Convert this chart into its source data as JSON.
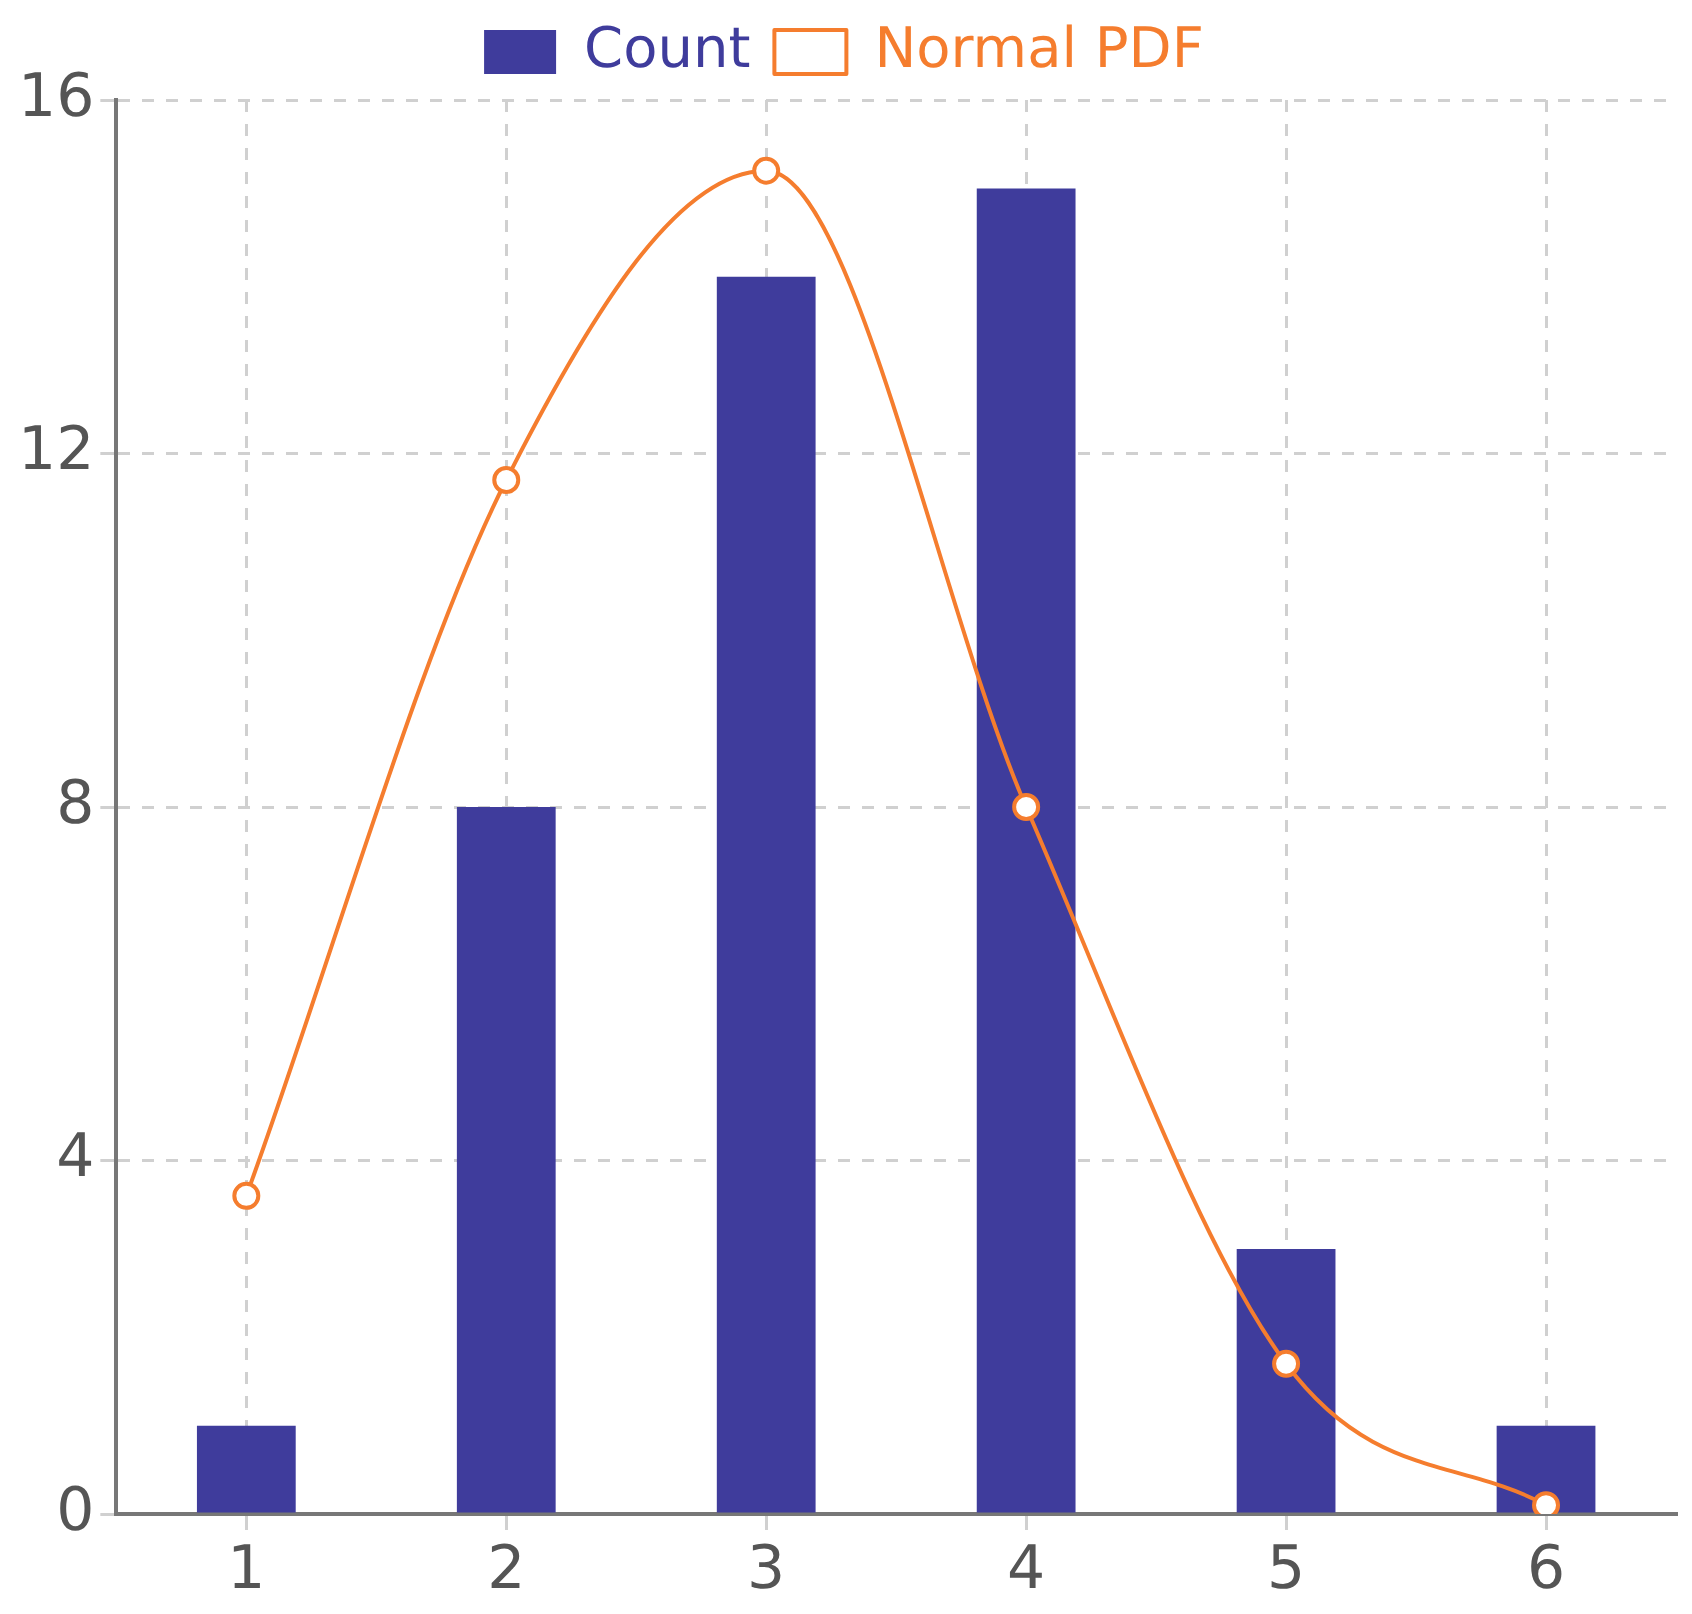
{
  "chart_data": {
    "type": "bar",
    "categories": [
      "1",
      "2",
      "3",
      "4",
      "5",
      "6"
    ],
    "series": [
      {
        "name": "Count",
        "color": "#3f3c9c",
        "values": [
          1,
          8,
          14,
          15,
          3,
          1
        ]
      },
      {
        "name": "Normal PDF",
        "type": "line",
        "color": "#f57d2e",
        "values": [
          3.6,
          11.7,
          15.2,
          8.0,
          1.7,
          0.1
        ]
      }
    ],
    "ylim": [
      0,
      16
    ],
    "yticks": [
      0,
      4,
      8,
      12,
      16
    ],
    "grid": true,
    "legend": "top",
    "marker": "circle"
  }
}
